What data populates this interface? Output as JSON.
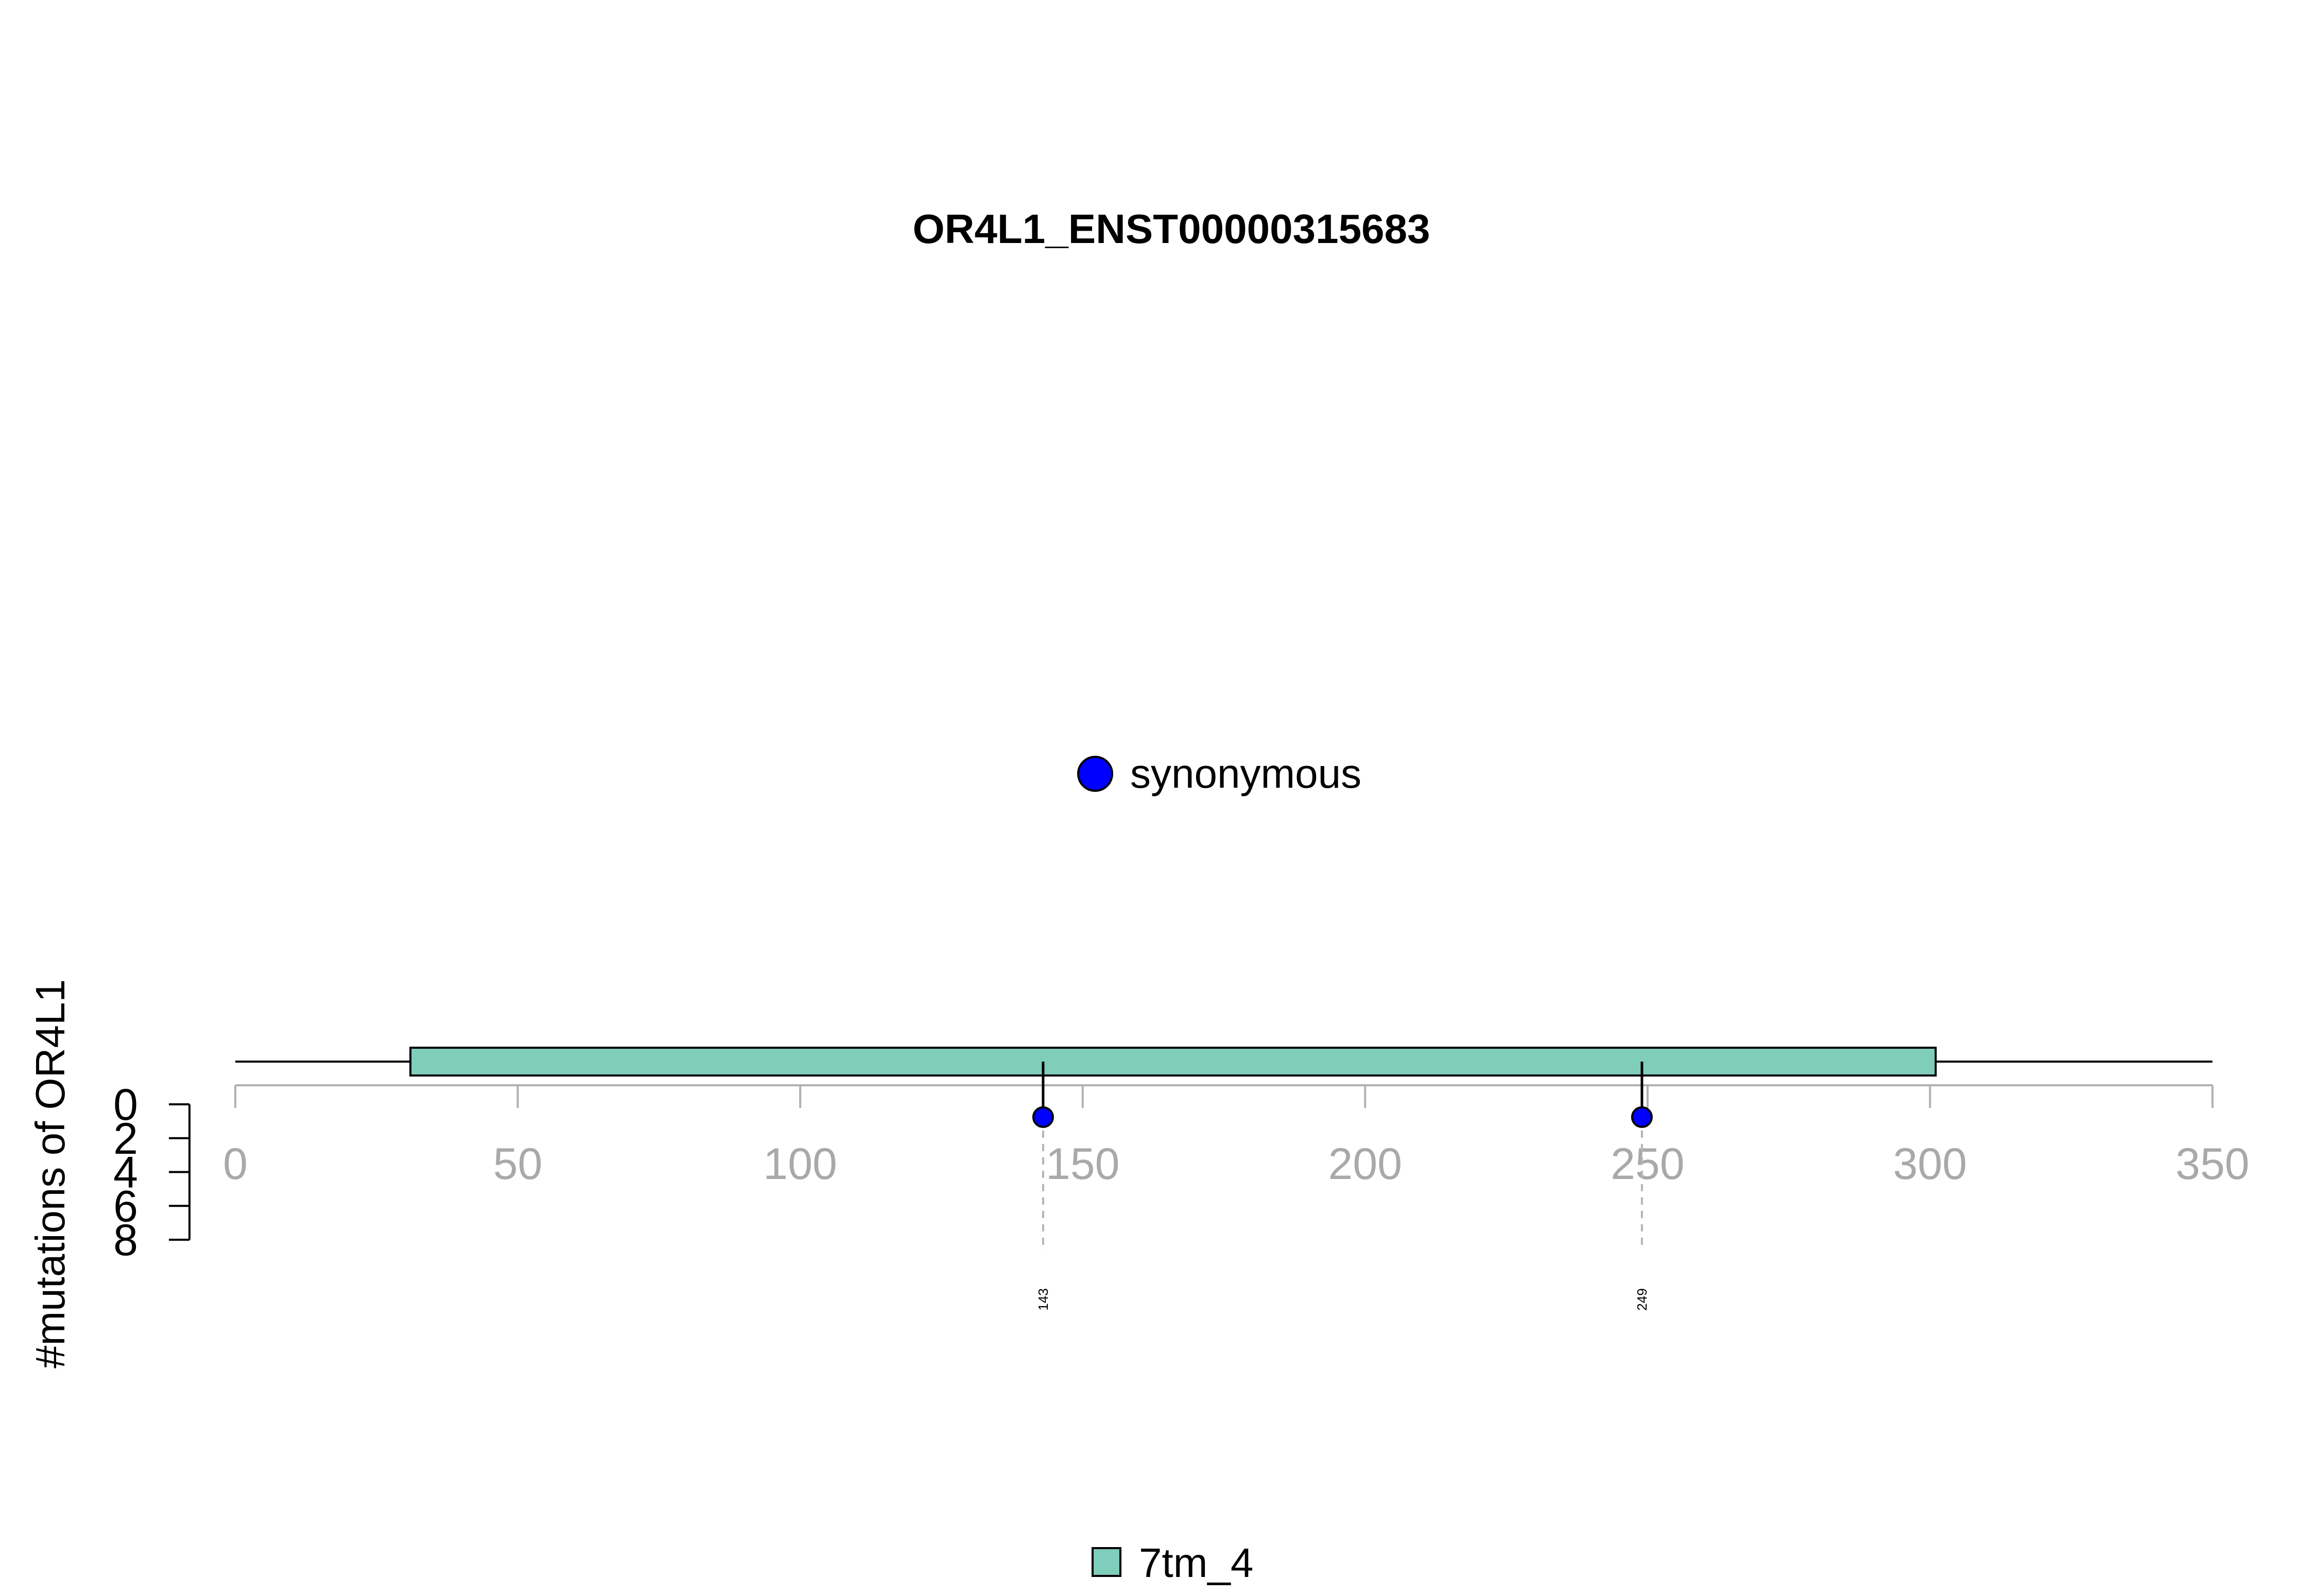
{
  "chart_data": {
    "type": "lollipop",
    "title": "OR4L1_ENST00000315683",
    "ylabel": "#mutations of OR4L1",
    "xlim": [
      0,
      350
    ],
    "x_ticks": [
      0,
      50,
      100,
      150,
      200,
      250,
      300,
      350
    ],
    "ylim": [
      0,
      8
    ],
    "y_ticks": [
      0,
      2,
      4,
      6,
      8
    ],
    "protein_length": 350,
    "domains": [
      {
        "name": "7tm_4",
        "start": 31,
        "end": 301,
        "color": "#7fcdbb"
      }
    ],
    "mutations": [
      {
        "position": 143,
        "count": 1,
        "type": "synonymous",
        "label": "143"
      },
      {
        "position": 249,
        "count": 1,
        "type": "synonymous",
        "label": "249"
      }
    ],
    "mutation_legend": [
      {
        "label": "synonymous",
        "color": "#0000ff"
      }
    ],
    "domain_legend": [
      {
        "label": "7tm_4",
        "color": "#7fcdbb"
      }
    ]
  }
}
